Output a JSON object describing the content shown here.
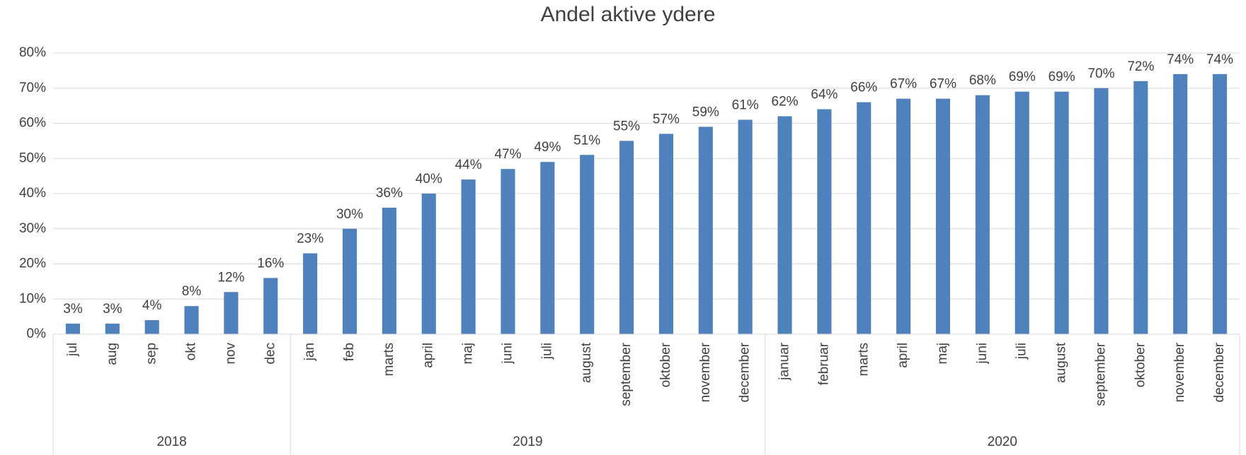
{
  "chart_data": {
    "type": "bar",
    "title": "Andel aktive ydere",
    "category_groups": [
      {
        "name": "2018",
        "categories": [
          "jul",
          "aug",
          "sep",
          "okt",
          "nov",
          "dec"
        ]
      },
      {
        "name": "2019",
        "categories": [
          "jan",
          "feb",
          "marts",
          "april",
          "maj",
          "juni",
          "juli",
          "august",
          "september",
          "oktober",
          "november",
          "december"
        ]
      },
      {
        "name": "2020",
        "categories": [
          "januar",
          "februar",
          "marts",
          "april",
          "maj",
          "juni",
          "juli",
          "august",
          "september",
          "oktober",
          "november",
          "december"
        ]
      }
    ],
    "values": [
      3,
      3,
      4,
      8,
      12,
      16,
      23,
      30,
      36,
      40,
      44,
      47,
      49,
      51,
      55,
      57,
      59,
      61,
      62,
      64,
      66,
      67,
      67,
      68,
      69,
      69,
      70,
      72,
      74,
      74
    ],
    "value_labels": [
      "3%",
      "3%",
      "4%",
      "8%",
      "12%",
      "16%",
      "23%",
      "30%",
      "36%",
      "40%",
      "44%",
      "47%",
      "49%",
      "51%",
      "55%",
      "57%",
      "59%",
      "61%",
      "62%",
      "64%",
      "66%",
      "67%",
      "67%",
      "68%",
      "69%",
      "69%",
      "70%",
      "72%",
      "74%",
      "74%"
    ],
    "color": "#4f81bd",
    "ylim": [
      0,
      80
    ],
    "yticks": [
      {
        "value": 0,
        "label": "0%"
      },
      {
        "value": 10,
        "label": "10%"
      },
      {
        "value": 20,
        "label": "20%"
      },
      {
        "value": 30,
        "label": "30%"
      },
      {
        "value": 40,
        "label": "40%"
      },
      {
        "value": 50,
        "label": "50%"
      },
      {
        "value": 60,
        "label": "60%"
      },
      {
        "value": 70,
        "label": "70%"
      },
      {
        "value": 80,
        "label": "80%"
      }
    ],
    "grid": true
  }
}
